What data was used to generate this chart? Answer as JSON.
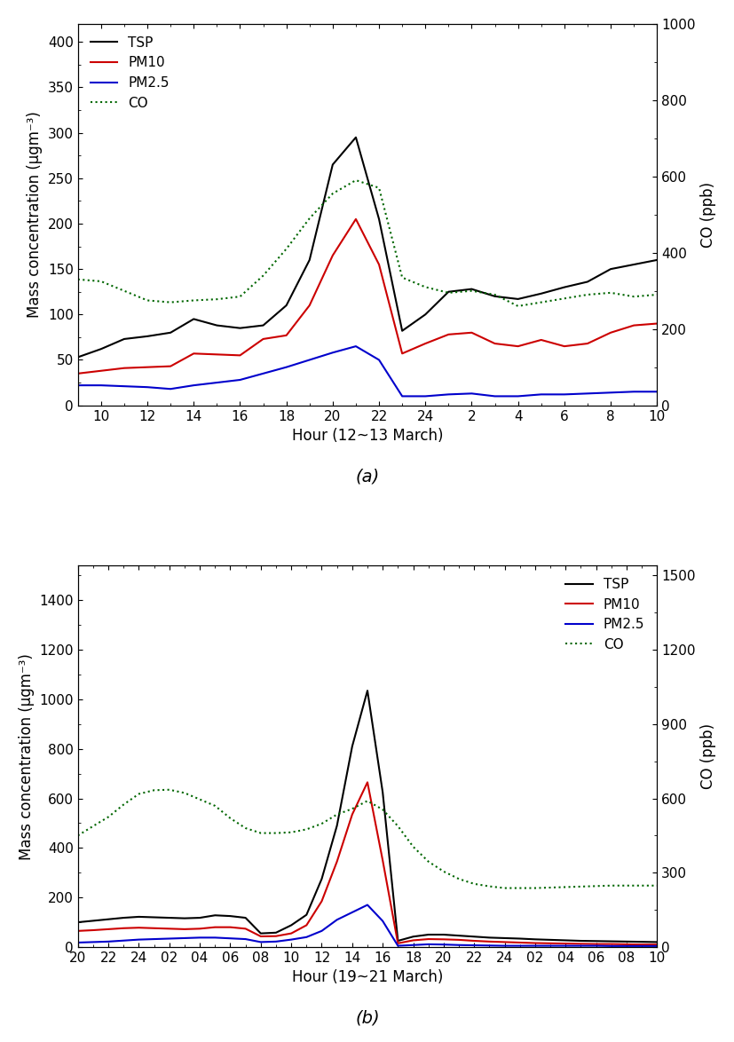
{
  "colors": {
    "TSP": "#000000",
    "PM10": "#cc0000",
    "PM2_5": "#0000cc",
    "CO": "#006600"
  },
  "panel_a": {
    "xlabel": "Hour (12~13 March)",
    "ylabel_left": "Mass concentration (μgm⁻³)",
    "ylabel_right": "CO (ppb)",
    "ylim_left": [
      0,
      420
    ],
    "ylim_right": [
      0,
      1000
    ],
    "yticks_left": [
      0,
      50,
      100,
      150,
      200,
      250,
      300,
      350,
      400
    ],
    "yticks_right": [
      0,
      200,
      400,
      600,
      800,
      1000
    ],
    "hours": [
      9,
      10,
      11,
      12,
      13,
      14,
      15,
      16,
      17,
      18,
      19,
      20,
      21,
      22,
      23,
      24,
      25,
      26,
      27,
      28,
      29,
      30,
      31,
      32,
      33,
      34
    ],
    "tick_hours": [
      10,
      12,
      14,
      16,
      18,
      20,
      22,
      24,
      26,
      28,
      30,
      32,
      34
    ],
    "tick_labels": [
      "10",
      "12",
      "14",
      "16",
      "18",
      "20",
      "22",
      "24",
      "2",
      "4",
      "6",
      "8",
      "10"
    ],
    "xlim": [
      9,
      34
    ],
    "TSP": [
      53,
      62,
      73,
      76,
      80,
      95,
      88,
      85,
      88,
      110,
      160,
      265,
      295,
      205,
      82,
      100,
      125,
      128,
      120,
      117,
      123,
      130,
      136,
      150,
      155,
      160
    ],
    "PM10": [
      35,
      38,
      41,
      42,
      43,
      57,
      56,
      55,
      73,
      77,
      110,
      165,
      205,
      155,
      57,
      68,
      78,
      80,
      68,
      65,
      72,
      65,
      68,
      80,
      88,
      90
    ],
    "PM2_5": [
      22,
      22,
      21,
      20,
      18,
      22,
      25,
      28,
      35,
      42,
      50,
      58,
      65,
      50,
      10,
      10,
      12,
      13,
      10,
      10,
      12,
      12,
      13,
      14,
      15,
      15
    ],
    "CO": [
      330,
      325,
      300,
      275,
      270,
      275,
      278,
      285,
      340,
      410,
      490,
      555,
      590,
      570,
      335,
      310,
      295,
      300,
      290,
      260,
      270,
      280,
      290,
      295,
      285,
      290
    ]
  },
  "panel_b": {
    "xlabel": "Hour (19~21 March)",
    "ylabel_left": "Mass concentration (μgm⁻³)",
    "ylabel_right": "CO (ppb)",
    "ylim_left": [
      0,
      1540
    ],
    "ylim_right": [
      0,
      1540
    ],
    "yticks_left": [
      0,
      200,
      400,
      600,
      800,
      1000,
      1200,
      1400
    ],
    "yticks_right": [
      0,
      300,
      600,
      900,
      1200,
      1500
    ],
    "hours": [
      20,
      21,
      22,
      23,
      24,
      25,
      26,
      27,
      28,
      29,
      30,
      31,
      32,
      33,
      34,
      35,
      36,
      37,
      38,
      39,
      40,
      41,
      42,
      43,
      44,
      45,
      46,
      47,
      48,
      49,
      50,
      51,
      52,
      53,
      54,
      55,
      56,
      57,
      58
    ],
    "tick_hours": [
      20,
      22,
      24,
      26,
      28,
      30,
      32,
      34,
      36,
      38,
      40,
      42,
      44,
      46,
      48,
      50,
      52,
      54,
      56,
      58
    ],
    "tick_labels": [
      "20",
      "22",
      "24",
      "02",
      "04",
      "06",
      "08",
      "10",
      "12",
      "14",
      "16",
      "18",
      "20",
      "22",
      "24",
      "02",
      "04",
      "06",
      "08",
      "10"
    ],
    "xlim": [
      20,
      58
    ],
    "TSP": [
      100,
      106,
      112,
      118,
      122,
      120,
      118,
      116,
      118,
      128,
      125,
      118,
      55,
      58,
      88,
      130,
      275,
      490,
      810,
      1035,
      625,
      25,
      42,
      50,
      50,
      46,
      42,
      38,
      36,
      34,
      31,
      29,
      27,
      25,
      24,
      23,
      22,
      21,
      20
    ],
    "PM10": [
      65,
      68,
      72,
      76,
      78,
      76,
      74,
      72,
      74,
      80,
      80,
      74,
      43,
      44,
      55,
      88,
      185,
      345,
      535,
      665,
      350,
      15,
      27,
      32,
      31,
      29,
      25,
      22,
      20,
      18,
      16,
      15,
      14,
      13,
      12,
      12,
      11,
      10,
      10
    ],
    "PM2_5": [
      18,
      20,
      22,
      26,
      30,
      32,
      34,
      36,
      38,
      38,
      35,
      32,
      20,
      22,
      30,
      40,
      65,
      110,
      140,
      170,
      105,
      5,
      8,
      11,
      10,
      8,
      7,
      6,
      5,
      5,
      5,
      5,
      5,
      5,
      5,
      4,
      4,
      4,
      4
    ],
    "CO": [
      450,
      488,
      525,
      575,
      618,
      633,
      635,
      622,
      596,
      570,
      520,
      480,
      460,
      460,
      463,
      475,
      498,
      535,
      558,
      590,
      555,
      488,
      405,
      345,
      305,
      275,
      255,
      245,
      238,
      238,
      238,
      240,
      242,
      244,
      246,
      248,
      248,
      248,
      248
    ]
  },
  "label_fontsize": 12,
  "tick_fontsize": 11,
  "legend_fontsize": 11,
  "caption_fontsize": 14
}
